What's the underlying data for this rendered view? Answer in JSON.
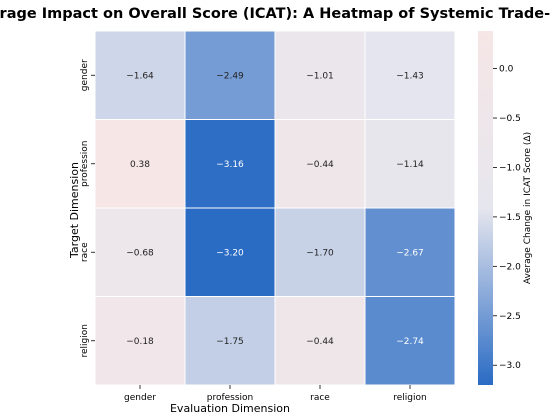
{
  "chart_data": {
    "type": "heatmap",
    "title": "Average Impact on Overall Score (ICAT): A Heatmap of Systemic Trade-offs",
    "xlabel": "Evaluation Dimension",
    "ylabel": "Target Dimension",
    "x_categories": [
      "gender",
      "profession",
      "race",
      "religion"
    ],
    "y_categories": [
      "gender",
      "profession",
      "race",
      "religion"
    ],
    "values": [
      [
        -1.64,
        -2.49,
        -1.01,
        -1.43
      ],
      [
        0.38,
        -3.16,
        -0.44,
        -1.14
      ],
      [
        -0.68,
        -3.2,
        -1.7,
        -2.67
      ],
      [
        -0.18,
        -1.75,
        -0.44,
        -2.74
      ]
    ],
    "value_labels": [
      [
        "−1.64",
        "−2.49",
        "−1.01",
        "−1.43"
      ],
      [
        "0.38",
        "−3.16",
        "−0.44",
        "−1.14"
      ],
      [
        "−0.68",
        "−3.20",
        "−1.70",
        "−2.67"
      ],
      [
        "−0.18",
        "−1.75",
        "−0.44",
        "−2.74"
      ]
    ],
    "colorbar": {
      "label": "Average Change in ICAT Score (Δ)",
      "vmin": -3.2,
      "vmax": 0.38,
      "ticks": [
        0.0,
        -0.5,
        -1.0,
        -1.5,
        -2.0,
        -2.5,
        -3.0
      ],
      "tick_labels": [
        "0.0",
        "−0.5",
        "−1.0",
        "−1.5",
        "−2.0",
        "−2.5",
        "−3.0"
      ],
      "colors": {
        "high": "#f6e6e6",
        "mid": "#e6e6ee",
        "low": "#2a6bc4"
      }
    }
  }
}
